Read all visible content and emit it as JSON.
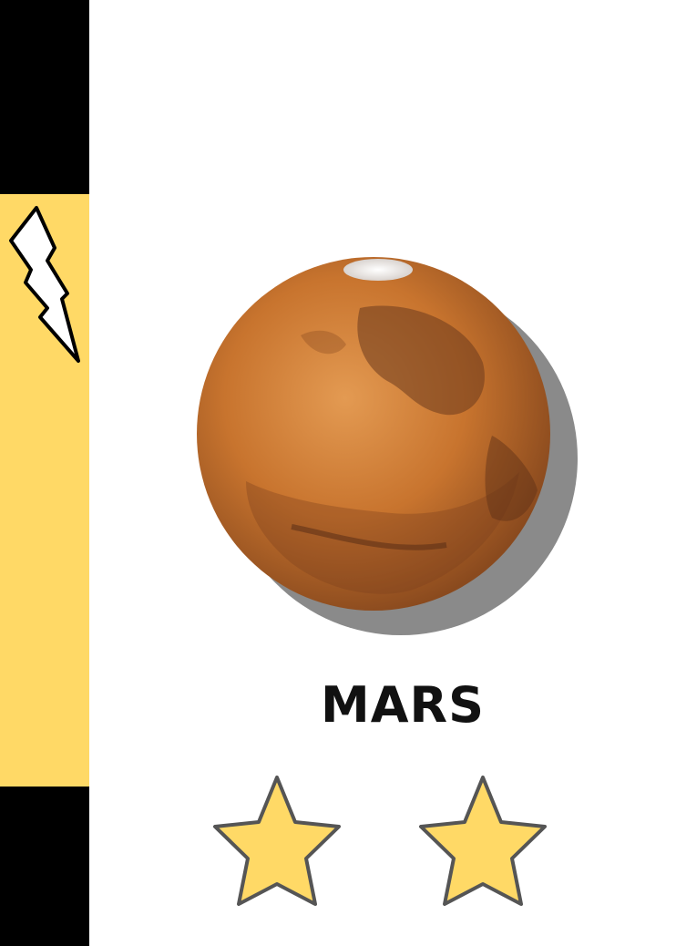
{
  "card": {
    "planet_name": "MARS",
    "rating": 2,
    "rating_max": 2
  },
  "colors": {
    "band_black": "#000000",
    "band_yellow": "#FFD966",
    "star_fill": "#FFD966",
    "star_stroke": "#555555",
    "planet_base": "#C8742E",
    "planet_dark": "#6B3A1E",
    "shadow": "#8A8A8A"
  },
  "icons": {
    "side": "lightning-bolt-icon",
    "rating": "star-icon"
  }
}
